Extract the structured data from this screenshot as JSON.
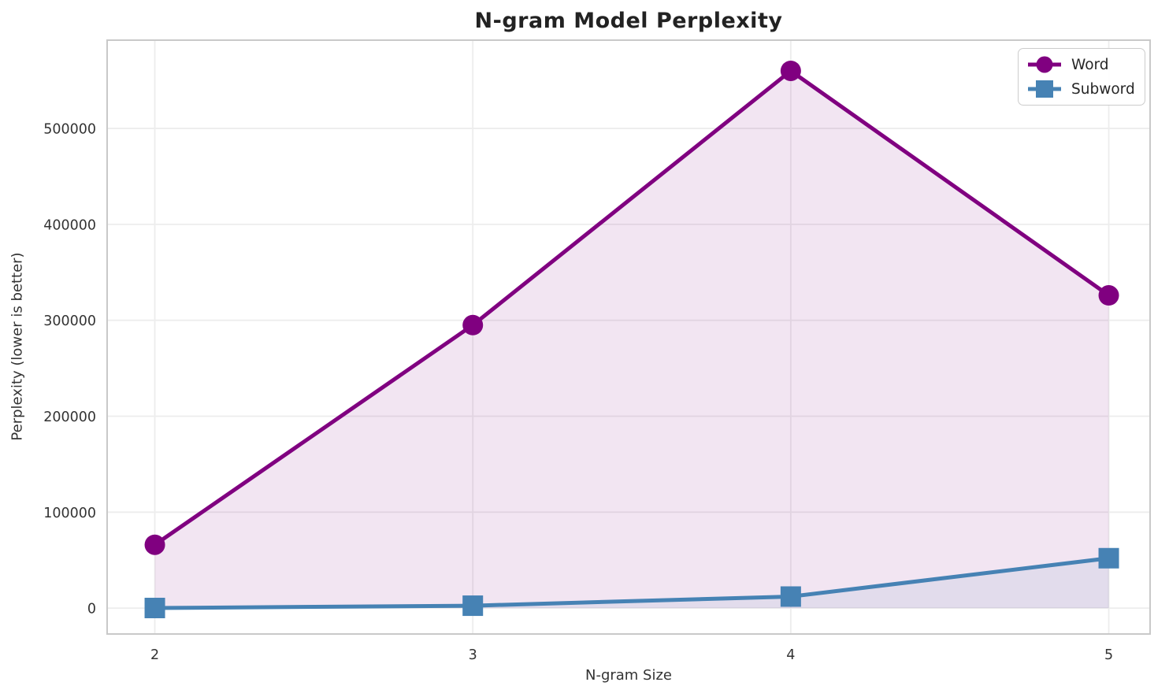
{
  "chart_data": {
    "type": "line",
    "title": "N-gram Model Perplexity",
    "xlabel": "N-gram Size",
    "ylabel": "Perplexity (lower is better)",
    "x": [
      2,
      3,
      4,
      5
    ],
    "xtick_labels": [
      "2",
      "3",
      "4",
      "5"
    ],
    "ytick_values": [
      0,
      100000,
      200000,
      300000,
      400000,
      500000
    ],
    "ytick_labels": [
      "0",
      "100000",
      "200000",
      "300000",
      "400000",
      "500000"
    ],
    "xlim": [
      1.85,
      5.13
    ],
    "ylim": [
      -27000,
      592000
    ],
    "grid": true,
    "legend_position": "upper right",
    "fill_to_zero": true,
    "line_width": 5,
    "marker_size": 26,
    "series": [
      {
        "name": "Word",
        "color": "#800080",
        "marker": "circle",
        "fill_opacity": 0.1,
        "values": [
          66000,
          295000,
          560000,
          326000
        ]
      },
      {
        "name": "Subword",
        "color": "#4682B4",
        "marker": "square",
        "fill_opacity": 0.09,
        "values": [
          100,
          2500,
          12000,
          52000
        ]
      }
    ],
    "style": {
      "grid_color": "#ededed",
      "spine_color": "#c9c9c9",
      "tick_text_color": "#333333",
      "title_color": "#222222",
      "background": "#ffffff"
    }
  }
}
